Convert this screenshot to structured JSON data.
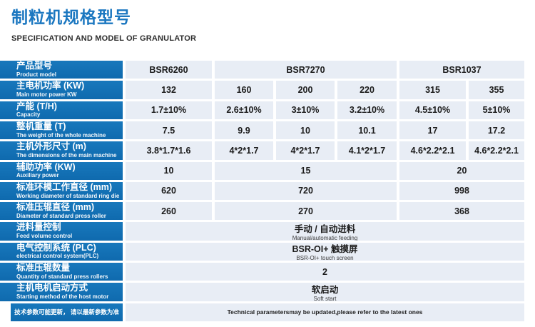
{
  "page": {
    "title": "制粒机规格型号",
    "subtitle": "SPECIFICATION AND MODEL OF GRANULATOR"
  },
  "colors": {
    "accent_blue": "#1272b5",
    "title_blue": "#1b77c0",
    "cell_bg": "#e8edf5"
  },
  "table": {
    "rows": [
      {
        "zh": "产品型号",
        "en": "Product model",
        "cells": [
          "BSR6260",
          "BSR7270",
          "BSR1037"
        ]
      },
      {
        "zh": "主电机功率 (KW)",
        "en": "Main motor power KW",
        "cells": [
          "132",
          "160",
          "200",
          "220",
          "315",
          "355"
        ]
      },
      {
        "zh": "产能 (T/H)",
        "en": "Capacity",
        "cells": [
          "1.7±10%",
          "2.6±10%",
          "3±10%",
          "3.2±10%",
          "4.5±10%",
          "5±10%"
        ]
      },
      {
        "zh": "整机重量 (T)",
        "en": "The weight of the whole machine",
        "cells": [
          "7.5",
          "9.9",
          "10",
          "10.1",
          "17",
          "17.2"
        ]
      },
      {
        "zh": "主机外形尺寸 (m)",
        "en": "The dimensions of the main machine",
        "cells": [
          "3.8*1.7*1.6",
          "4*2*1.7",
          "4*2*1.7",
          "4.1*2*1.7",
          "4.6*2.2*2.1",
          "4.6*2.2*2.1"
        ]
      },
      {
        "zh": "辅助功率 (KW)",
        "en": "Auxiliary power",
        "cells": [
          "10",
          "15",
          "20"
        ]
      },
      {
        "zh": "标准环模工作直径 (mm)",
        "en": "Working diameter of standard ring die",
        "cells": [
          "620",
          "720",
          "998"
        ]
      },
      {
        "zh": "标准压辊直径 (mm)",
        "en": "Diameter of standard press roller",
        "cells": [
          "260",
          "270",
          "368"
        ]
      },
      {
        "zh": "进料量控制",
        "en": "Feed volume control",
        "value": "手动 / 自动进料",
        "value_en": "Manual/automatic feeding"
      },
      {
        "zh": "电气控制系统 (PLC)",
        "en": "electrical control system(PLC)",
        "value": "BSR-OI+ 触摸屏",
        "value_en": "BSR-OI+ touch screen"
      },
      {
        "zh": "标准压辊数量",
        "en": "Quantity of standard press rollers",
        "value": "2",
        "value_en": ""
      },
      {
        "zh": "主机电机启动方式",
        "en": "Starting method of the host motor",
        "value": "软启动",
        "value_en": "Soft start"
      }
    ],
    "footer": {
      "zh": "技术参数可能更新， 请以最新参数为准",
      "en": "Technical parametersmay be updated,please refer to the latest ones"
    }
  }
}
